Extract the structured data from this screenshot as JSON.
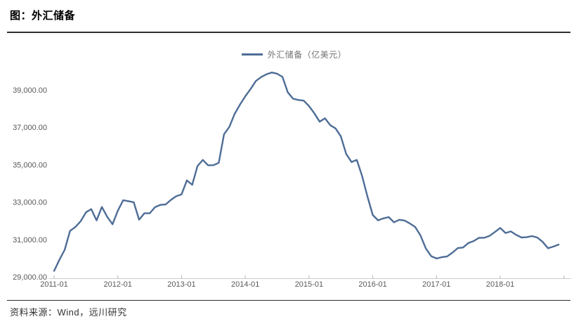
{
  "title": "图：外汇储备",
  "legend": {
    "label": "外汇储备（亿美元）"
  },
  "source": "资料来源：Wind，远川研究",
  "colors": {
    "line": "#4e6d96",
    "axis_line": "#cccccc",
    "axis_tick": "#b5b5b5",
    "tick_label": "#595959",
    "legend_text": "#737373",
    "rule": "#2e2e2e",
    "source_text": "#333333",
    "title_text": "#000000"
  },
  "chart_data": {
    "type": "line",
    "title": "图：外汇储备",
    "series_name": "外汇储备（亿美元）",
    "unit": "亿美元",
    "legend_position": "top-center",
    "grid": false,
    "ylim": [
      29000,
      40000
    ],
    "y_ticks": [
      29000,
      31000,
      33000,
      35000,
      37000,
      39000
    ],
    "y_tick_labels": [
      "29,000.00",
      "31,000.00",
      "33,000.00",
      "35,000.00",
      "37,000.00",
      "39,000.00"
    ],
    "x_tick_labels": [
      "2011-01",
      "2012-01",
      "2013-01",
      "2014-01",
      "2015-01",
      "2016-01",
      "2017-01",
      "2018-01"
    ],
    "x": [
      "2011-01",
      "2011-02",
      "2011-03",
      "2011-04",
      "2011-05",
      "2011-06",
      "2011-07",
      "2011-08",
      "2011-09",
      "2011-10",
      "2011-11",
      "2011-12",
      "2012-01",
      "2012-02",
      "2012-03",
      "2012-04",
      "2012-05",
      "2012-06",
      "2012-07",
      "2012-08",
      "2012-09",
      "2012-10",
      "2012-11",
      "2012-12",
      "2013-01",
      "2013-02",
      "2013-03",
      "2013-04",
      "2013-05",
      "2013-06",
      "2013-07",
      "2013-08",
      "2013-09",
      "2013-10",
      "2013-11",
      "2013-12",
      "2014-01",
      "2014-02",
      "2014-03",
      "2014-04",
      "2014-05",
      "2014-06",
      "2014-07",
      "2014-08",
      "2014-09",
      "2014-10",
      "2014-11",
      "2014-12",
      "2015-01",
      "2015-02",
      "2015-03",
      "2015-04",
      "2015-05",
      "2015-06",
      "2015-07",
      "2015-08",
      "2015-09",
      "2015-10",
      "2015-11",
      "2015-12",
      "2016-01",
      "2016-02",
      "2016-03",
      "2016-04",
      "2016-05",
      "2016-06",
      "2016-07",
      "2016-08",
      "2016-09",
      "2016-10",
      "2016-11",
      "2016-12",
      "2017-01",
      "2017-02",
      "2017-03",
      "2017-04",
      "2017-05",
      "2017-06",
      "2017-07",
      "2017-08",
      "2017-09",
      "2017-10",
      "2017-11",
      "2017-12",
      "2018-01",
      "2018-02",
      "2018-03",
      "2018-04",
      "2018-05",
      "2018-06",
      "2018-07",
      "2018-08",
      "2018-09",
      "2018-10",
      "2018-11",
      "2018-12"
    ],
    "values": [
      29317,
      29914,
      30447,
      31458,
      31660,
      31975,
      32452,
      32625,
      32017,
      32738,
      32209,
      31811,
      32537,
      33096,
      33050,
      32989,
      32061,
      32400,
      32400,
      32726,
      32851,
      32873,
      33116,
      33311,
      33410,
      34157,
      33926,
      34926,
      35254,
      34967,
      34975,
      35100,
      36627,
      37023,
      37717,
      38213,
      38660,
      39050,
      39481,
      39688,
      39839,
      39932,
      39867,
      39694,
      38877,
      38529,
      38461,
      38430,
      38134,
      37750,
      37300,
      37482,
      37111,
      36938,
      36513,
      35573,
      35141,
      35255,
      34383,
      33304,
      32309,
      32023,
      32126,
      32197,
      31917,
      32052,
      32011,
      31852,
      31664,
      31207,
      30516,
      30105,
      29982,
      30051,
      30091,
      30295,
      30536,
      30568,
      30807,
      30915,
      31085,
      31092,
      31193,
      31399,
      31615,
      31345,
      31428,
      31249,
      31106,
      31121,
      31179,
      31097,
      30870,
      30531,
      30617,
      30727
    ]
  }
}
